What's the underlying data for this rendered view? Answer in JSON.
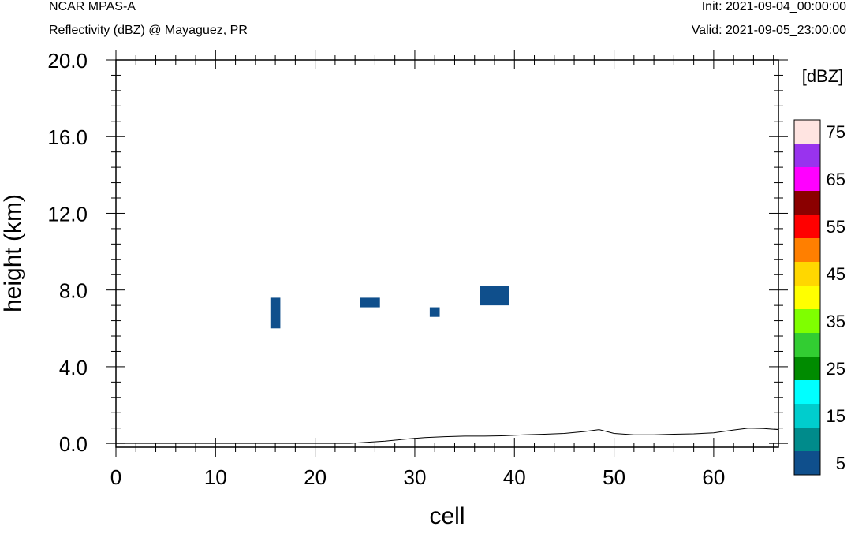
{
  "header": {
    "model": "NCAR MPAS-A",
    "subtitle": "Reflectivity (dBZ) @ Mayaguez, PR",
    "init": "Init: 2021-09-04_00:00:00",
    "valid": "Valid: 2021-09-05_23:00:00"
  },
  "chart_data": {
    "type": "heatmap",
    "xlabel": "cell",
    "ylabel": "height (km)",
    "xlim": [
      0,
      66.5
    ],
    "ylim": [
      -0.2,
      20.0
    ],
    "xticks": [
      0,
      10,
      20,
      30,
      40,
      50,
      60
    ],
    "xtick_labels": [
      "0",
      "10",
      "20",
      "30",
      "40",
      "50",
      "60"
    ],
    "yticks": [
      0,
      4,
      8,
      12,
      16,
      20
    ],
    "ytick_labels": [
      "0.0",
      "4.0",
      "8.0",
      "12.0",
      "16.0",
      "20.0"
    ],
    "colorbar": {
      "title": "[dBZ]",
      "levels": [
        5,
        10,
        15,
        20,
        25,
        30,
        35,
        40,
        45,
        50,
        55,
        60,
        65,
        70,
        75
      ],
      "labels": [
        "5",
        "15",
        "25",
        "35",
        "45",
        "55",
        "65",
        "75"
      ],
      "colors": [
        "#0f4f8c",
        "#008b8b",
        "#00cdcd",
        "#00ffff",
        "#008b00",
        "#32cd32",
        "#7fff00",
        "#ffff00",
        "#ffd700",
        "#ff7f00",
        "#ff0000",
        "#8b0000",
        "#ff00ff",
        "#9933ee",
        "#ffe4e1"
      ]
    },
    "cells": [
      {
        "x0": 15.5,
        "x1": 16.5,
        "y0": 6.0,
        "y1": 7.6,
        "dbz": 5
      },
      {
        "x0": 24.5,
        "x1": 26.5,
        "y0": 7.1,
        "y1": 7.6,
        "dbz": 5
      },
      {
        "x0": 31.5,
        "x1": 32.5,
        "y0": 6.6,
        "y1": 7.1,
        "dbz": 5
      },
      {
        "x0": 36.5,
        "x1": 39.5,
        "y0": 7.2,
        "y1": 8.2,
        "dbz": 5
      }
    ],
    "terrain": {
      "x": [
        0,
        10,
        20,
        23.5,
        25,
        27,
        29,
        31,
        33,
        35,
        37,
        39,
        41,
        43,
        45,
        47,
        48.5,
        50,
        52,
        54,
        56,
        58,
        60,
        62,
        63.5,
        65,
        66.5
      ],
      "y": [
        0,
        0,
        0,
        0,
        0.05,
        0.12,
        0.22,
        0.3,
        0.35,
        0.38,
        0.38,
        0.4,
        0.45,
        0.48,
        0.52,
        0.62,
        0.72,
        0.52,
        0.45,
        0.45,
        0.48,
        0.5,
        0.55,
        0.7,
        0.8,
        0.78,
        0.72
      ]
    }
  }
}
